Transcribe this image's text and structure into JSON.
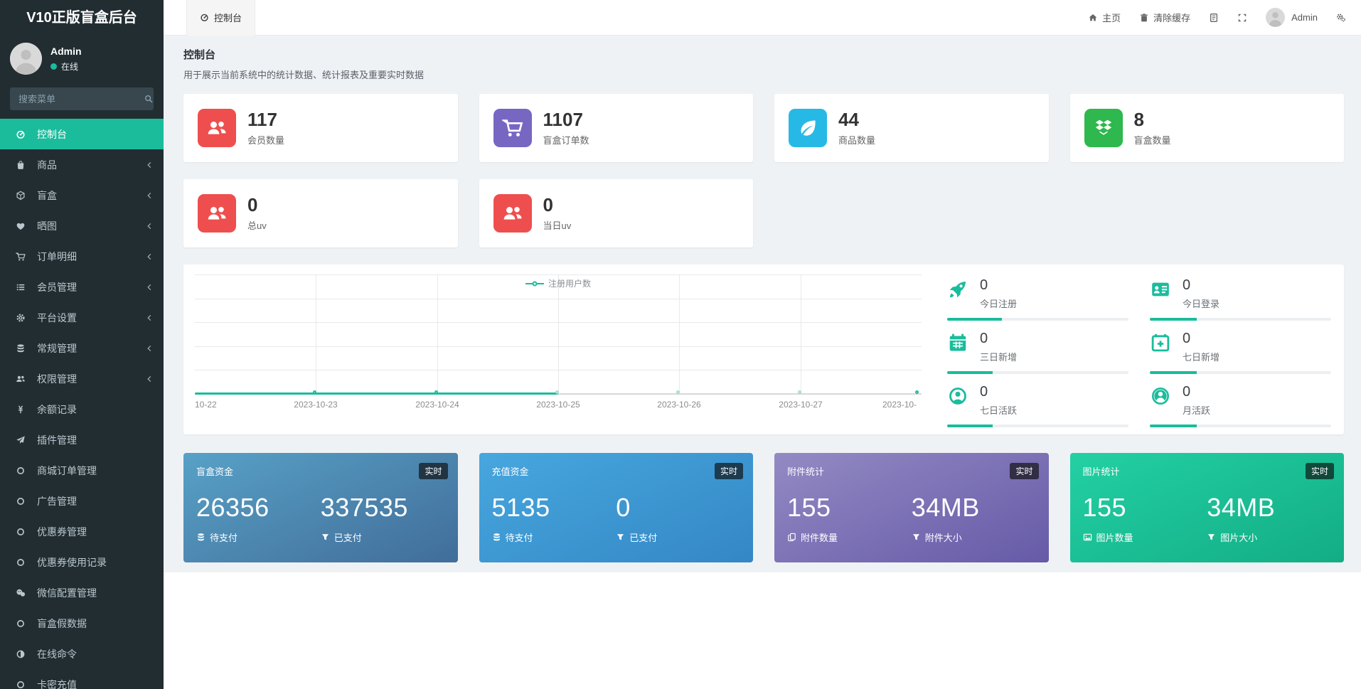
{
  "sidebar": {
    "logo": "V10正版盲盒后台",
    "user": {
      "name": "Admin",
      "status": "在线"
    },
    "search_placeholder": "搜索菜单",
    "menu": [
      {
        "icon": "dashboard-icon",
        "label": "控制台",
        "active": true,
        "chevron": false
      },
      {
        "icon": "shopping-bag-icon",
        "label": "商品",
        "active": false,
        "chevron": true
      },
      {
        "icon": "cube-icon",
        "label": "盲盒",
        "active": false,
        "chevron": true
      },
      {
        "icon": "heart-icon",
        "label": "晒图",
        "active": false,
        "chevron": true
      },
      {
        "icon": "cart-icon",
        "label": "订单明细",
        "active": false,
        "chevron": true
      },
      {
        "icon": "list-icon",
        "label": "会员管理",
        "active": false,
        "chevron": true
      },
      {
        "icon": "gear-icon",
        "label": "平台设置",
        "active": false,
        "chevron": true
      },
      {
        "icon": "database-icon",
        "label": "常规管理",
        "active": false,
        "chevron": true
      },
      {
        "icon": "users-icon",
        "label": "权限管理",
        "active": false,
        "chevron": true
      },
      {
        "icon": "yen-icon",
        "label": "余额记录",
        "active": false,
        "chevron": false
      },
      {
        "icon": "paper-plane-icon",
        "label": "插件管理",
        "active": false,
        "chevron": false
      },
      {
        "icon": "circle-icon",
        "label": "商城订单管理",
        "active": false,
        "chevron": false
      },
      {
        "icon": "circle-icon",
        "label": "广告管理",
        "active": false,
        "chevron": false
      },
      {
        "icon": "circle-icon",
        "label": "优惠券管理",
        "active": false,
        "chevron": false
      },
      {
        "icon": "circle-icon",
        "label": "优惠券使用记录",
        "active": false,
        "chevron": false
      },
      {
        "icon": "wechat-icon",
        "label": "微信配置管理",
        "active": false,
        "chevron": false
      },
      {
        "icon": "circle-icon",
        "label": "盲盒假数据",
        "active": false,
        "chevron": false
      },
      {
        "icon": "adjust-icon",
        "label": "在线命令",
        "active": false,
        "chevron": false
      },
      {
        "icon": "circle-icon",
        "label": "卡密充值",
        "active": false,
        "chevron": false
      }
    ]
  },
  "topbar": {
    "tab": {
      "icon": "dashboard-icon",
      "label": "控制台"
    },
    "actions": [
      {
        "icon": "home-icon",
        "label": "主页"
      },
      {
        "icon": "trash-icon",
        "label": "清除缓存"
      },
      {
        "icon": "log-icon",
        "label": ""
      },
      {
        "icon": "expand-icon",
        "label": ""
      }
    ],
    "user": "Admin",
    "settings_icon": "cogs-icon"
  },
  "header": {
    "title": "控制台",
    "subtitle": "用于展示当前系统中的统计数据、统计报表及重要实时数据"
  },
  "stat_cards_row1": [
    {
      "icon": "users-icon",
      "color": "#ee4f4e",
      "value": "117",
      "label": "会员数量"
    },
    {
      "icon": "cart-icon",
      "color": "#7767c3",
      "value": "1107",
      "label": "盲盒订单数"
    },
    {
      "icon": "leaf-icon",
      "color": "#27b9e5",
      "value": "44",
      "label": "商品数量"
    },
    {
      "icon": "dropbox-icon",
      "color": "#2eb84d",
      "value": "8",
      "label": "盲盒数量"
    }
  ],
  "stat_cards_row2": [
    {
      "icon": "users-icon",
      "color": "#ee4f4e",
      "value": "0",
      "label": "总uv"
    },
    {
      "icon": "users-icon",
      "color": "#ee4f4e",
      "value": "0",
      "label": "当日uv"
    }
  ],
  "chart_data": {
    "type": "line",
    "title": "",
    "x": [
      "10-22",
      "2023-10-23",
      "2023-10-24",
      "2023-10-25",
      "2023-10-26",
      "2023-10-27",
      "2023-10-"
    ],
    "series": [
      {
        "name": "注册用户数",
        "values": [
          0,
          0,
          0,
          0,
          0,
          0,
          0
        ],
        "color": "#1abc9c"
      }
    ],
    "legend_position": "top-center",
    "grid": true,
    "grid_rows": 5,
    "yticks": [],
    "ylim": [
      0,
      0
    ],
    "solid_segment_end_index": 3
  },
  "mini_stats": [
    {
      "icon": "rocket-icon",
      "value": "0",
      "label": "今日注册",
      "progress": 30
    },
    {
      "icon": "id-card-icon",
      "value": "0",
      "label": "今日登录",
      "progress": 26
    },
    {
      "icon": "calendar-icon",
      "value": "0",
      "label": "三日新增",
      "progress": 25
    },
    {
      "icon": "calendar-plus-icon",
      "value": "0",
      "label": "七日新增",
      "progress": 26
    },
    {
      "icon": "user-circle-icon",
      "value": "0",
      "label": "七日活跃",
      "progress": 25
    },
    {
      "icon": "user-circle-solid-icon",
      "value": "0",
      "label": "月活跃",
      "progress": 26
    }
  ],
  "gradient_cards": [
    {
      "title": "盲盒资金",
      "badge": "实时",
      "grad_from": "#58a1c6",
      "grad_to": "#416d9a",
      "items": [
        {
          "icon": "database-icon",
          "value": "26356",
          "label": "待支付"
        },
        {
          "icon": "filter-icon",
          "value": "337535",
          "label": "已支付"
        }
      ]
    },
    {
      "title": "充值资金",
      "badge": "实时",
      "grad_from": "#47a7de",
      "grad_to": "#3487c5",
      "items": [
        {
          "icon": "database-icon",
          "value": "5135",
          "label": "待支付"
        },
        {
          "icon": "filter-icon",
          "value": "0",
          "label": "已支付"
        }
      ]
    },
    {
      "title": "附件统计",
      "badge": "实时",
      "grad_from": "#938ac4",
      "grad_to": "#665aa7",
      "items": [
        {
          "icon": "copy-icon",
          "value": "155",
          "label": "附件数量"
        },
        {
          "icon": "filter-icon",
          "value": "34MB",
          "label": "附件大小"
        }
      ]
    },
    {
      "title": "图片统计",
      "badge": "实时",
      "grad_from": "#23d0a4",
      "grad_to": "#13ad85",
      "items": [
        {
          "icon": "image-icon",
          "value": "155",
          "label": "图片数量"
        },
        {
          "icon": "filter-icon",
          "value": "34MB",
          "label": "图片大小"
        }
      ]
    }
  ],
  "accent_color": "#1abc9c",
  "sidebar_bg": "#222d32"
}
